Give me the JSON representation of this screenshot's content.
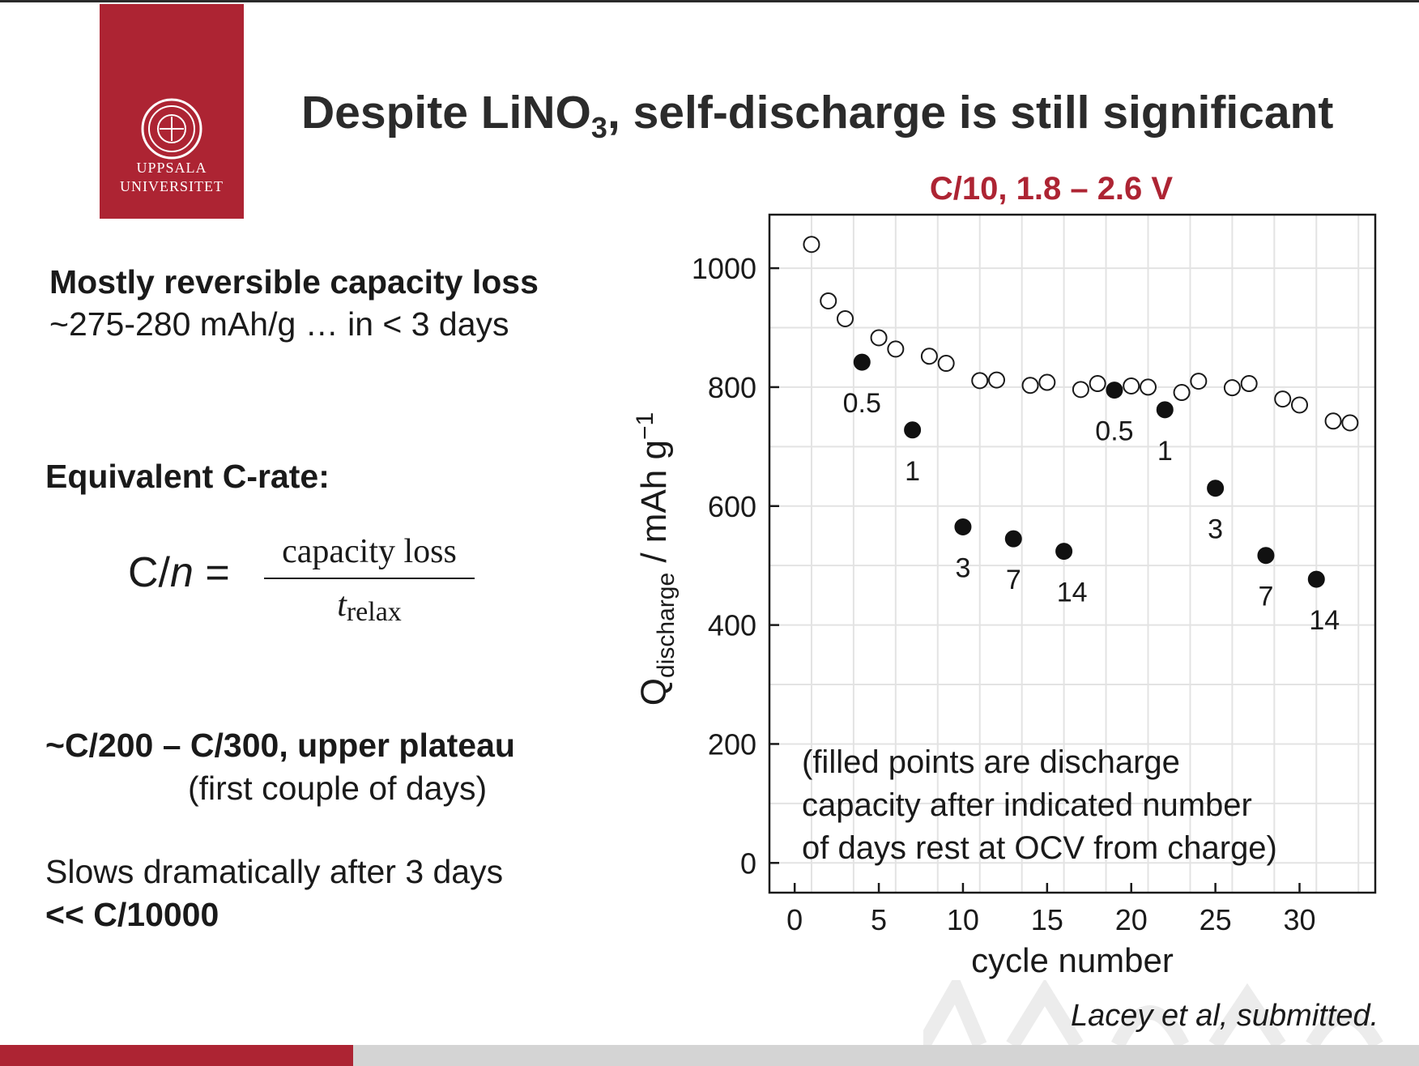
{
  "logo": {
    "line1": "UPPSALA",
    "line2": "UNIVERSITET",
    "color": "#ad2433"
  },
  "title": {
    "main": "Despite LiNO",
    "sub": "3",
    "rest": ", self-discharge is still significant"
  },
  "left": {
    "heading1": "Mostly reversible capacity loss",
    "line1": "~275-280 mAh/g … in < 3 days",
    "heading2": "Equivalent C-rate:",
    "equation": {
      "lhs_c": "C/",
      "lhs_n": "n",
      "equals": "=",
      "numerator": "capacity loss",
      "den_t": "t",
      "den_sub": "relax"
    },
    "heading3": "~C/200 – C/300, upper plateau",
    "line3": "(first couple of days)",
    "line4": "Slows dramatically after 3 days",
    "heading4": "<< C/10000"
  },
  "citation": "Lacey et al, submitted.",
  "chart_data": {
    "type": "scatter",
    "title": "C/10, 1.8 – 2.6 V",
    "title_color": "#ad2433",
    "xlabel": "cycle number",
    "ylabel_main": "Q",
    "ylabel_sub": "discharge",
    "ylabel_units": " / mAh g",
    "ylabel_sup": "−1",
    "xlim": [
      -1.5,
      34.5
    ],
    "ylim": [
      -50,
      1090
    ],
    "xticks": [
      0,
      5,
      10,
      15,
      20,
      25,
      30
    ],
    "yticks": [
      0,
      200,
      400,
      600,
      800,
      1000
    ],
    "grid": true,
    "annotation": [
      "(filled points are discharge",
      "capacity after indicated number",
      "of days rest at OCV from charge)"
    ],
    "series": [
      {
        "marker": "open-circle",
        "points": [
          [
            1,
            1040
          ],
          [
            2,
            945
          ],
          [
            3,
            915
          ],
          [
            5,
            883
          ],
          [
            6,
            864
          ],
          [
            8,
            852
          ],
          [
            9,
            840
          ],
          [
            11,
            811
          ],
          [
            12,
            812
          ],
          [
            14,
            803
          ],
          [
            15,
            808
          ],
          [
            17,
            796
          ],
          [
            18,
            806
          ],
          [
            20,
            802
          ],
          [
            21,
            800
          ],
          [
            23,
            791
          ],
          [
            24,
            810
          ],
          [
            26,
            799
          ],
          [
            27,
            806
          ],
          [
            29,
            780
          ],
          [
            30,
            770
          ],
          [
            32,
            743
          ],
          [
            33,
            740
          ]
        ]
      },
      {
        "marker": "filled-circle",
        "points": [
          {
            "x": 4,
            "y": 842,
            "label": "0.5"
          },
          {
            "x": 7,
            "y": 728,
            "label": "1"
          },
          {
            "x": 10,
            "y": 565,
            "label": "3"
          },
          {
            "x": 13,
            "y": 545,
            "label": "7"
          },
          {
            "x": 16,
            "y": 524,
            "label": "14"
          },
          {
            "x": 19,
            "y": 795,
            "label": "0.5"
          },
          {
            "x": 22,
            "y": 762,
            "label": "1"
          },
          {
            "x": 25,
            "y": 630,
            "label": "3"
          },
          {
            "x": 28,
            "y": 517,
            "label": "7"
          },
          {
            "x": 31,
            "y": 477,
            "label": "14"
          }
        ]
      }
    ]
  }
}
